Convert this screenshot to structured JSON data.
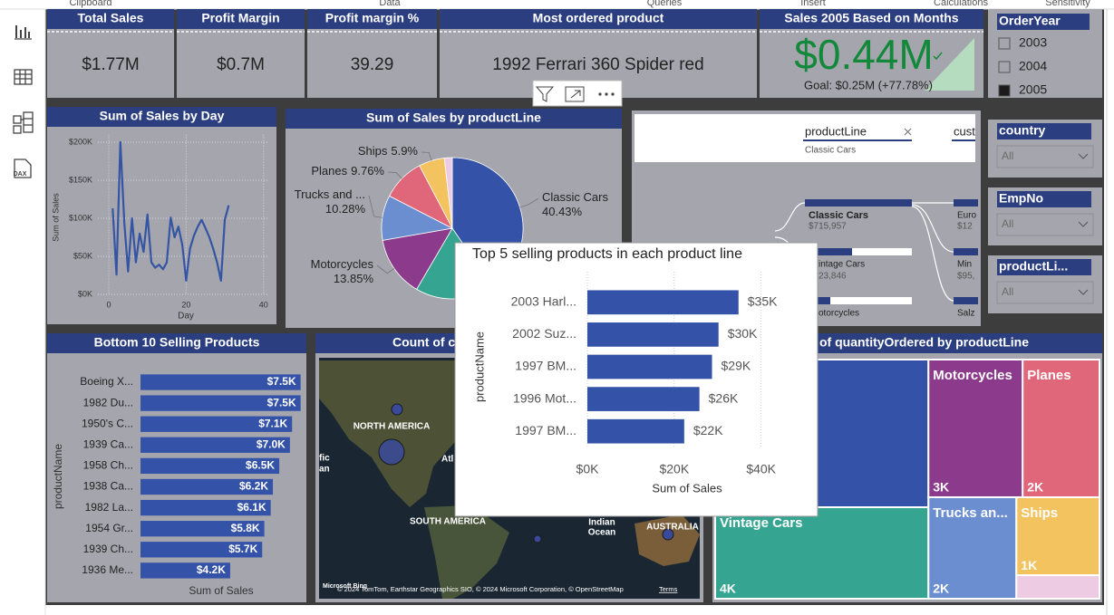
{
  "ribbon": [
    "Clipboard",
    "Data",
    "Queries",
    "Insert",
    "Calculations",
    "Sensitivity"
  ],
  "sidebar": {
    "dax_icon": "DAX"
  },
  "kpis": [
    {
      "title": "Total Sales",
      "value": "$1.77M"
    },
    {
      "title": "Profit Margin",
      "value": "$0.7M"
    },
    {
      "title": "Profit margin %",
      "value": 39.29
    },
    {
      "title": "Most ordered product",
      "value": "1992 Ferrari 360 Spider red"
    }
  ],
  "goal_card": {
    "title": "Sales 2005 Based on Months",
    "value": "$0.44M",
    "goal": "Goal: $0.25M (+77.78%)"
  },
  "slicers": [
    {
      "title": "OrderYear",
      "options": [
        "2003",
        "2004",
        "2005"
      ],
      "selected": [
        false,
        false,
        true
      ]
    },
    {
      "title": "country",
      "value": "All"
    },
    {
      "title": "EmpNo",
      "value": "All"
    },
    {
      "title": "productLi...",
      "value": "All"
    }
  ],
  "decomposition_tree": {
    "header_left": "productLine",
    "filter": "Classic Cars",
    "header_right": "cust",
    "nodes": [
      {
        "label": "Classic Cars",
        "value": "$715,957"
      },
      {
        "label": "intage Cars",
        "value": "23,846"
      },
      {
        "label": "otorcycles"
      }
    ],
    "next_nodes": [
      {
        "label": "Euro",
        "value": "$12"
      },
      {
        "label": "Min",
        "value": "$95,"
      },
      {
        "label": "Salz"
      }
    ]
  },
  "map": {
    "title": "Count of c",
    "labels": [
      "NORTH AMERICA",
      "SOUTH AMERICA",
      "Atl",
      "fic",
      "an",
      "Indian",
      "Ocean",
      "AUSTRALIA"
    ],
    "attribution": "© 2024 TomTom, Earthstar Geographics SIO, © 2024 Microsoft Corporation, © OpenStreetMap",
    "terms": "Terms",
    "logo": "Microsoft Bing"
  },
  "chart_data": [
    {
      "type": "line",
      "title": "Sum of Sales by Day",
      "x_label": "Day",
      "y_label": "Sum of Sales",
      "x": [
        1,
        2,
        3,
        4,
        5,
        6,
        7,
        8,
        9,
        10,
        11,
        12,
        13,
        14,
        15,
        16,
        17,
        18,
        19,
        20,
        21,
        22,
        23,
        24,
        25,
        26,
        27,
        28,
        29,
        30,
        31
      ],
      "values": [
        113000,
        26000,
        200000,
        95000,
        30000,
        100000,
        42000,
        80000,
        56000,
        105000,
        42000,
        35000,
        39000,
        33000,
        42000,
        101000,
        75000,
        89000,
        65000,
        18000,
        60000,
        77000,
        89000,
        98000,
        87000,
        75000,
        60000,
        42000,
        18000,
        98000,
        117000
      ],
      "color": "#3455a4",
      "xlim": [
        0,
        41
      ],
      "ylim": [
        0,
        210000
      ],
      "xticks": [
        0,
        20,
        40
      ],
      "yticks": [
        {
          "value": 0,
          "label": "$0K"
        },
        {
          "value": 50000,
          "label": "$50K"
        },
        {
          "value": 100000,
          "label": "$100K"
        },
        {
          "value": 150000,
          "label": "$150K"
        },
        {
          "value": 200000,
          "label": "$200K"
        }
      ],
      "grid": true
    },
    {
      "type": "pie",
      "title": "Sum of Sales by productLine",
      "categories": [
        "Classic Cars",
        null,
        "Motorcycles",
        "Trucks and ...",
        "Planes",
        "Ships",
        null
      ],
      "values": [
        40.43,
        17.98,
        13.85,
        10.28,
        9.76,
        5.9,
        1.8
      ],
      "value_labels": [
        "40.43%",
        null,
        "13.85%",
        "10.28%",
        "9.76%",
        "5.9%",
        null
      ],
      "colors": [
        "#3453a8",
        "#35a591",
        "#8b3a8c",
        "#6b8ed0",
        "#e0667a",
        "#f2c35f",
        "#eccbe3"
      ]
    },
    {
      "type": "bar",
      "orientation": "horizontal",
      "title": "Top 5 selling products in each product line",
      "x_label": "Sum of Sales",
      "y_label": "productName",
      "categories": [
        "2003 Harl...",
        "2002 Suz...",
        "1997 BM...",
        "1996 Mot...",
        "1997 BM..."
      ],
      "values": [
        34800,
        30200,
        28700,
        25800,
        22300
      ],
      "value_labels": [
        "$35K",
        "$30K",
        "$29K",
        "$26K",
        "$22K"
      ],
      "label_position": "outside",
      "color": "#3453a8",
      "xlim": [
        0,
        48000
      ],
      "xticks": [
        {
          "value": 0,
          "label": "$0K"
        },
        {
          "value": 20000,
          "label": "$20K"
        },
        {
          "value": 40000,
          "label": "$40K"
        }
      ],
      "grid": true
    },
    {
      "type": "bar",
      "orientation": "horizontal",
      "title": "Bottom 10 Selling Products",
      "x_label": "Sum of Sales",
      "y_label": "productName",
      "categories": [
        "Boeing X...",
        "1982 Du...",
        "1950's C...",
        "1939 Ca...",
        "1958 Ch...",
        "1938 Ca...",
        "1982 La...",
        "1954 Gr...",
        "1939 Ch...",
        "1936 Me..."
      ],
      "values": [
        7500,
        7500,
        7100,
        7000,
        6500,
        6200,
        6100,
        5800,
        5700,
        4200
      ],
      "value_labels": [
        "$7.5K",
        "$7.5K",
        "$7.1K",
        "$7.0K",
        "$6.5K",
        "$6.2K",
        "$6.1K",
        "$5.8K",
        "$5.7K",
        "$4.2K"
      ],
      "label_position": "inside",
      "color": "#3453a8",
      "xlim": [
        0,
        7600
      ],
      "grid": false
    },
    {
      "type": "treemap",
      "title": "of quantityOrdered by productLine",
      "categories": [
        null,
        "Vintage Cars",
        "Motorcycles",
        "Planes",
        "Trucks an...",
        "Ships",
        null
      ],
      "values": [
        6460,
        4000,
        2660,
        2170,
        1830,
        1330,
        400
      ],
      "value_labels": [
        null,
        "4K",
        "3K",
        "2K",
        "2K",
        "1K",
        null
      ],
      "colors": [
        "#3453a8",
        "#35a591",
        "#8b3a8c",
        "#e0667a",
        "#6b8ed0",
        "#f2c35f",
        "#eccbe3"
      ]
    }
  ]
}
